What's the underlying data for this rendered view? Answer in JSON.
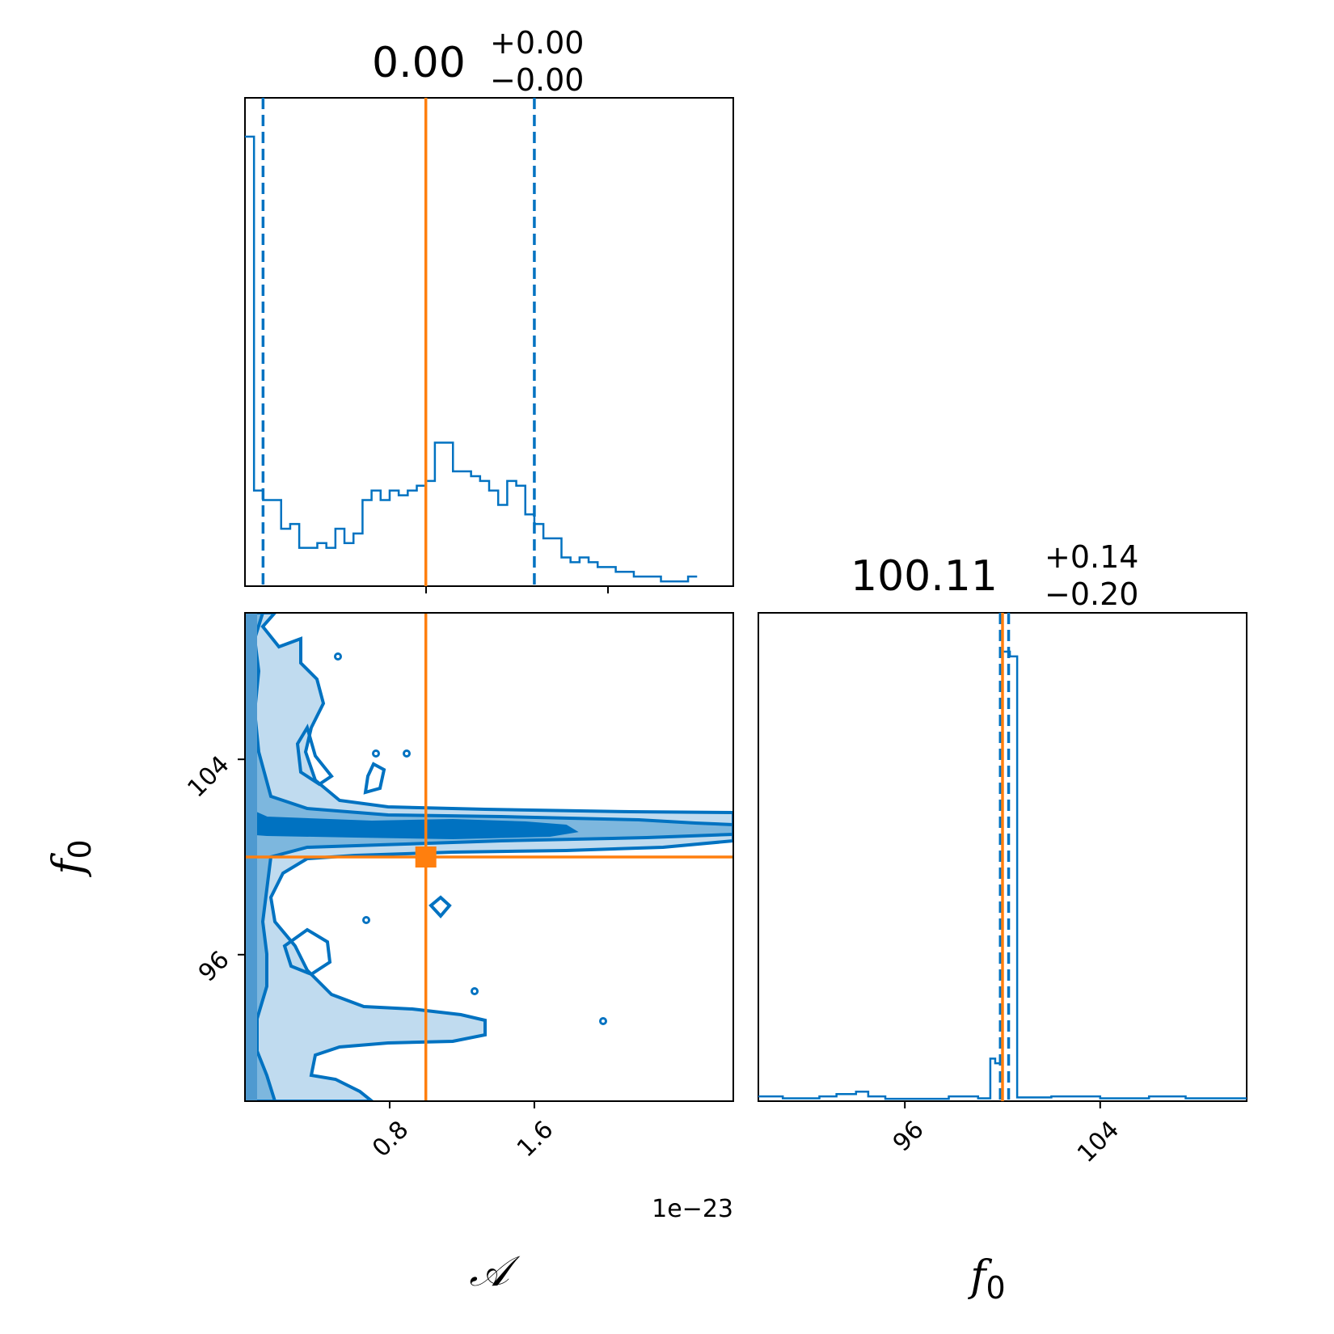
{
  "colors": {
    "primary": "#0072c1",
    "truth": "#ff7f0e"
  },
  "chart_data": {
    "type": "corner",
    "parameters": [
      {
        "symbol": "A",
        "axis_label": "𝒜",
        "truth": 1e-23,
        "q16": 1e-24,
        "q84": 1.6e-23,
        "range": [
          0.0,
          2.7e-23
        ],
        "offset_text": "1e−23",
        "ticks": [
          8e-24,
          1.6e-23
        ],
        "tick_labels": [
          "0.8",
          "1.6"
        ]
      },
      {
        "symbol": "f0",
        "axis_label": "f",
        "axis_sub": "0",
        "truth": 100.0,
        "q16": 99.91,
        "q84": 100.25,
        "range": [
          90.0,
          110.0
        ],
        "ticks": [
          96,
          104
        ],
        "tick_labels": [
          "96",
          "104"
        ]
      }
    ],
    "titles": [
      {
        "main": "0.00",
        "plus": "+0.00",
        "minus": "−0.00"
      },
      {
        "main": "100.11",
        "plus": "+0.14",
        "minus": "−0.20"
      }
    ],
    "hist_A": {
      "bin_width": 5e-25,
      "counts": [
        94,
        20,
        18,
        18,
        12,
        13,
        8,
        8,
        9,
        8,
        12,
        9,
        11,
        18,
        20,
        18,
        20,
        19,
        20,
        21,
        22,
        30,
        30,
        24,
        24,
        23,
        22,
        20,
        17,
        22,
        21,
        15,
        13,
        10,
        10,
        6,
        5,
        6,
        5,
        4,
        4,
        3,
        3,
        2,
        2,
        2,
        1,
        1,
        1,
        2
      ]
    },
    "hist_f0": {
      "bins": [
        {
          "x0": 90.0,
          "x1": 91.0,
          "count": 1
        },
        {
          "x0": 91.0,
          "x1": 92.5,
          "count": 0.6
        },
        {
          "x0": 92.5,
          "x1": 93.2,
          "count": 1
        },
        {
          "x0": 93.2,
          "x1": 94.0,
          "count": 1.5
        },
        {
          "x0": 94.0,
          "x1": 94.5,
          "count": 2
        },
        {
          "x0": 94.5,
          "x1": 95.2,
          "count": 1
        },
        {
          "x0": 95.2,
          "x1": 97.8,
          "count": 0.5
        },
        {
          "x0": 97.8,
          "x1": 99.0,
          "count": 1
        },
        {
          "x0": 99.0,
          "x1": 99.5,
          "count": 0.6
        },
        {
          "x0": 99.5,
          "x1": 99.7,
          "count": 9
        },
        {
          "x0": 99.7,
          "x1": 100.0,
          "count": 8
        },
        {
          "x0": 100.0,
          "x1": 100.3,
          "count": 95
        },
        {
          "x0": 100.3,
          "x1": 100.6,
          "count": 94
        },
        {
          "x0": 100.6,
          "x1": 102.0,
          "count": 0.8
        },
        {
          "x0": 102.0,
          "x1": 104.0,
          "count": 1
        },
        {
          "x0": 104.0,
          "x1": 106.0,
          "count": 0.6
        },
        {
          "x0": 106.0,
          "x1": 107.5,
          "count": 1
        },
        {
          "x0": 107.5,
          "x1": 110.0,
          "count": 0.6
        }
      ]
    }
  }
}
